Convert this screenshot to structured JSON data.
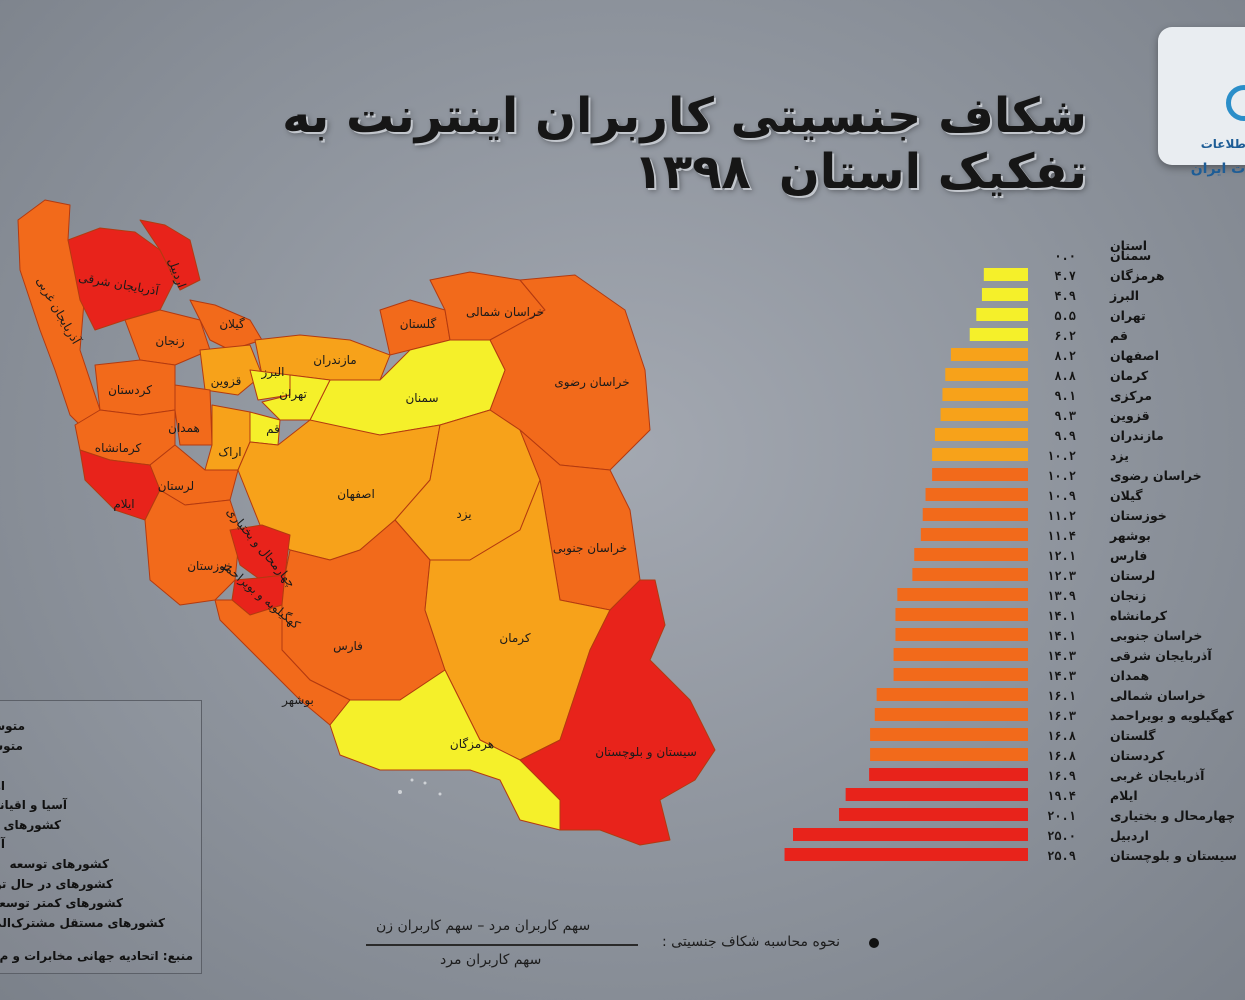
{
  "title": "شکاف جنسیتی کاربران اینترنت به تفکیک استان",
  "year": "۱۳۹۸",
  "logo": {
    "line1": "اطلاعات",
    "line2": "ات ایران"
  },
  "legend_items": [
    "متوسط ک",
    "متوسط",
    "اه",
    "آسیا و اقیانو",
    "کشورهای",
    "آ",
    "کشورهای توسعه",
    "کشورهای در حال تو",
    "کشورهای کمتر توسعه",
    "کشورهای مستقل مشترک‌الم",
    "منبع: اتحادیه جهانی مخابرات و م"
  ],
  "formula": {
    "title": "نحوه محاسبه شکاف جنسیتی :",
    "numerator": "سهم کاربران مرد – سهم کاربران زن",
    "denominator": "سهم کاربران مرد"
  },
  "map_labels": [
    "اردبیل",
    "آذربایجان شرقی",
    "آذربایجان غربی",
    "زنجان",
    "گیلان",
    "قزوین",
    "مازندران",
    "گلستان",
    "خراسان شمالی",
    "خراسان رضوی",
    "سمنان",
    "البرز",
    "تهران",
    "قم",
    "کردستان",
    "همدان",
    "کرمانشاه",
    "اراک",
    "لرستان",
    "ایلام",
    "اصفهان",
    "یزد",
    "خراسان جنوبی",
    "خوزستان",
    "چهارمحال و بختیاری",
    "کهگیلویه و بویراحمد",
    "فارس",
    "کرمان",
    "بوشهر",
    "هرمزگان",
    "سیستان و بلوچستان"
  ],
  "colors": {
    "red": "#e8231b",
    "orange": "#f26a1b",
    "lightorange": "#f7a21a",
    "yellow": "#f5f02a"
  },
  "chart_data": {
    "type": "bar",
    "orientation": "horizontal",
    "header": "استان",
    "categories": [
      "سمنان",
      "هرمزگان",
      "البرز",
      "تهران",
      "قم",
      "اصفهان",
      "کرمان",
      "مرکزی",
      "قزوین",
      "مازندران",
      "یزد",
      "خراسان رضوی",
      "گیلان",
      "خوزستان",
      "بوشهر",
      "فارس",
      "لرستان",
      "زنجان",
      "کرمانشاه",
      "خراسان جنوبی",
      "آذربایجان شرقی",
      "همدان",
      "خراسان شمالی",
      "کهگیلویه و بویراحمد",
      "گلستان",
      "کردستان",
      "آذربایجان غربی",
      "ایلام",
      "چهارمحال و بختیاری",
      "اردبیل",
      "سیستان و بلوچستان"
    ],
    "values": [
      0.0,
      4.7,
      4.9,
      5.5,
      6.2,
      8.2,
      8.8,
      9.1,
      9.3,
      9.9,
      10.2,
      10.2,
      10.9,
      11.2,
      11.4,
      12.1,
      12.3,
      13.9,
      14.1,
      14.1,
      14.3,
      14.3,
      16.1,
      16.3,
      16.8,
      16.8,
      16.9,
      19.4,
      20.1,
      25.0,
      25.9
    ],
    "value_labels": [
      "۰.۰",
      "۴.۷",
      "۴.۹",
      "۵.۵",
      "۶.۲",
      "۸.۲",
      "۸.۸",
      "۹.۱",
      "۹.۳",
      "۹.۹",
      "۱۰.۲",
      "۱۰.۲",
      "۱۰.۹",
      "۱۱.۲",
      "۱۱.۴",
      "۱۲.۱",
      "۱۲.۳",
      "۱۳.۹",
      "۱۴.۱",
      "۱۴.۱",
      "۱۴.۳",
      "۱۴.۳",
      "۱۶.۱",
      "۱۶.۳",
      "۱۶.۸",
      "۱۶.۸",
      "۱۶.۹",
      "۱۹.۴",
      "۲۰.۱",
      "۲۵.۰",
      "۲۵.۹"
    ],
    "colors_by_category": [
      "yellow",
      "yellow",
      "yellow",
      "yellow",
      "yellow",
      "lightorange",
      "lightorange",
      "lightorange",
      "lightorange",
      "lightorange",
      "lightorange",
      "orange",
      "orange",
      "orange",
      "orange",
      "orange",
      "orange",
      "orange",
      "orange",
      "orange",
      "orange",
      "orange",
      "orange",
      "orange",
      "orange",
      "orange",
      "red",
      "red",
      "red",
      "red",
      "red"
    ]
  }
}
